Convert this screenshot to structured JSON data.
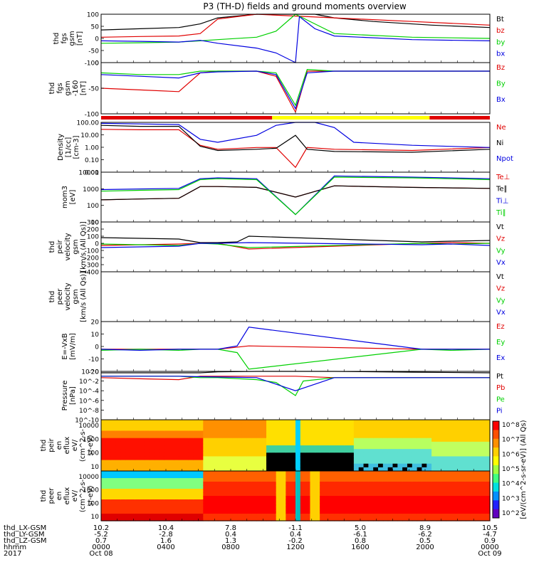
{
  "title": "P3 (TH-D) fields and ground moments overview",
  "colors": {
    "black": "#000000",
    "red": "#e00000",
    "green": "#00d000",
    "blue": "#0000e0",
    "yellow": "#ffff00"
  },
  "chart_data": [
    {
      "type": "line",
      "id": "fgs",
      "ylabel": [
        "thd",
        "fgs",
        "gsm",
        "[nT]"
      ],
      "ylim": [
        -100,
        100
      ],
      "yticks": [
        "100",
        "50",
        "0",
        "-50",
        "-100"
      ],
      "legend": [
        {
          "name": "Bt",
          "color": "#000000"
        },
        {
          "name": "bz",
          "color": "#e00000"
        },
        {
          "name": "by",
          "color": "#00d000"
        },
        {
          "name": "bx",
          "color": "#0000e0"
        }
      ],
      "series": [
        {
          "name": "Bt",
          "color": "#000000",
          "x": [
            0,
            0.1,
            0.2,
            0.255,
            0.3,
            0.4,
            0.48,
            0.51,
            0.55,
            0.6,
            0.7,
            0.85,
            1
          ],
          "y": [
            35,
            40,
            45,
            60,
            85,
            100,
            100,
            100,
            100,
            85,
            70,
            55,
            45
          ]
        },
        {
          "name": "bz",
          "color": "#e00000",
          "x": [
            0,
            0.1,
            0.2,
            0.255,
            0.3,
            0.4,
            0.6,
            0.8,
            1
          ],
          "y": [
            5,
            8,
            10,
            20,
            80,
            100,
            85,
            70,
            55
          ]
        },
        {
          "name": "by",
          "color": "#00d000",
          "x": [
            0,
            0.1,
            0.2,
            0.255,
            0.3,
            0.4,
            0.45,
            0.5,
            0.55,
            0.6,
            0.8,
            1
          ],
          "y": [
            -20,
            -18,
            -15,
            -10,
            -5,
            5,
            30,
            100,
            60,
            20,
            5,
            0
          ]
        },
        {
          "name": "bx",
          "color": "#0000e0",
          "x": [
            0,
            0.1,
            0.2,
            0.255,
            0.3,
            0.4,
            0.45,
            0.5,
            0.51,
            0.55,
            0.6,
            0.8,
            1
          ],
          "y": [
            -10,
            -12,
            -15,
            -8,
            -20,
            -40,
            -60,
            -100,
            90,
            40,
            10,
            -5,
            -10
          ]
        }
      ]
    },
    {
      "type": "line",
      "id": "fgs_sm",
      "ylabel": [
        "thd",
        "fgs",
        "gsm",
        "-160",
        "[nT]"
      ],
      "ylim": [
        -125,
        25
      ],
      "yticks": [
        "0",
        "-50",
        "-100"
      ],
      "legend": [
        {
          "name": "Bz",
          "color": "#e00000"
        },
        {
          "name": "By",
          "color": "#00d000"
        },
        {
          "name": "Bx",
          "color": "#0000e0"
        }
      ],
      "series": [
        {
          "name": "Bz",
          "color": "#e00000",
          "x": [
            0,
            0.1,
            0.2,
            0.255,
            0.3,
            0.4,
            0.45,
            0.5,
            0.53,
            0.6,
            0.8,
            1
          ],
          "y": [
            -50,
            -55,
            -60,
            -5,
            0,
            0,
            -15,
            -120,
            0,
            0,
            0,
            0
          ]
        },
        {
          "name": "By",
          "color": "#00d000",
          "x": [
            0,
            0.1,
            0.2,
            0.255,
            0.3,
            0.4,
            0.45,
            0.5,
            0.53,
            0.6,
            0.8,
            1
          ],
          "y": [
            -5,
            -10,
            -10,
            0,
            0,
            0,
            -5,
            -100,
            5,
            0,
            0,
            0
          ]
        },
        {
          "name": "Bx",
          "color": "#0000e0",
          "x": [
            0,
            0.1,
            0.2,
            0.255,
            0.3,
            0.4,
            0.45,
            0.5,
            0.53,
            0.6,
            0.8,
            1
          ],
          "y": [
            -10,
            -15,
            -20,
            -5,
            -2,
            0,
            -10,
            -110,
            -5,
            0,
            0,
            0
          ]
        }
      ]
    },
    {
      "type": "line",
      "id": "density",
      "ylabel": [
        "Density",
        "[1/cc]",
        "[cm-3]"
      ],
      "ylim_log": [
        0.001,
        100
      ],
      "yticks": [
        "100.00",
        "10.00",
        "1.00",
        "0.10",
        "0.01"
      ],
      "legend": [
        {
          "name": "Ne",
          "color": "#e00000"
        },
        {
          "name": "Ni",
          "color": "#000000"
        },
        {
          "name": "Npot",
          "color": "#0000e0"
        }
      ],
      "series": [
        {
          "name": "Ne",
          "color": "#e00000",
          "x": [
            0,
            0.1,
            0.2,
            0.255,
            0.3,
            0.4,
            0.45,
            0.5,
            0.53,
            0.6,
            0.8,
            1
          ],
          "y": [
            20,
            18,
            18,
            0.5,
            0.2,
            0.3,
            0.3,
            0.003,
            0.3,
            0.2,
            0.15,
            0.3
          ]
        },
        {
          "name": "Ni",
          "color": "#000000",
          "x": [
            0,
            0.1,
            0.2,
            0.255,
            0.3,
            0.4,
            0.45,
            0.5,
            0.53,
            0.6,
            0.8,
            1
          ],
          "y": [
            50,
            40,
            40,
            0.4,
            0.15,
            0.2,
            0.25,
            5,
            0.2,
            0.12,
            0.1,
            0.2
          ]
        },
        {
          "name": "Npot",
          "color": "#0000e0",
          "x": [
            0,
            0.1,
            0.2,
            0.255,
            0.3,
            0.4,
            0.45,
            0.5,
            0.55,
            0.6,
            0.65,
            0.8,
            1
          ],
          "y": [
            80,
            70,
            60,
            2,
            1,
            5,
            50,
            100,
            100,
            30,
            1,
            0.5,
            0.3
          ]
        }
      ]
    },
    {
      "type": "line",
      "id": "temperature",
      "ylabel": [
        "mom3",
        "[eV]"
      ],
      "ylim_log": [
        1,
        10000
      ],
      "yticks": [
        "10000",
        "1000",
        "100",
        "10"
      ],
      "legend": [
        {
          "name": "Te⊥",
          "color": "#e00000"
        },
        {
          "name": "Te∥",
          "color": "#000000"
        },
        {
          "name": "Ti⊥",
          "color": "#0000e0"
        },
        {
          "name": "Ti∥",
          "color": "#00d000"
        }
      ],
      "series": [
        {
          "name": "Te⊥",
          "color": "#e00000",
          "x": [
            0,
            0.1,
            0.2,
            0.255,
            0.3,
            0.4,
            0.5,
            0.6,
            0.8,
            1
          ],
          "y": [
            60,
            70,
            80,
            700,
            700,
            600,
            100,
            800,
            600,
            500
          ]
        },
        {
          "name": "Te∥",
          "color": "#000000",
          "x": [
            0,
            0.1,
            0.2,
            0.255,
            0.3,
            0.4,
            0.5,
            0.6,
            0.8,
            1
          ],
          "y": [
            60,
            70,
            80,
            700,
            700,
            600,
            100,
            800,
            600,
            500
          ]
        },
        {
          "name": "Ti⊥",
          "color": "#0000e0",
          "x": [
            0,
            0.1,
            0.2,
            0.255,
            0.3,
            0.4,
            0.5,
            0.6,
            0.8,
            1
          ],
          "y": [
            400,
            450,
            500,
            3000,
            3500,
            3000,
            4,
            5000,
            4000,
            3000
          ]
        },
        {
          "name": "Ti∥",
          "color": "#00d000",
          "x": [
            0,
            0.1,
            0.2,
            0.255,
            0.3,
            0.4,
            0.5,
            0.6,
            0.8,
            1
          ],
          "y": [
            300,
            350,
            400,
            2500,
            3000,
            2500,
            4,
            4000,
            3500,
            2500
          ]
        }
      ]
    },
    {
      "type": "line",
      "id": "peir_velocity",
      "ylabel": [
        "thd",
        "peir",
        "velocity",
        "gsm",
        "[km/s (All Qs)]"
      ],
      "ylim": [
        -400,
        300
      ],
      "yticks": [
        "300",
        "200",
        "100",
        "0",
        "-100",
        "-200",
        "-300",
        "-400"
      ],
      "legend": [
        {
          "name": "Vt",
          "color": "#000000"
        },
        {
          "name": "Vz",
          "color": "#e00000"
        },
        {
          "name": "Vy",
          "color": "#00d000"
        },
        {
          "name": "Vx",
          "color": "#0000e0"
        }
      ],
      "series": [
        {
          "name": "Vt",
          "color": "#000000",
          "x": [
            0,
            0.1,
            0.2,
            0.255,
            0.3,
            0.35,
            0.38,
            0.825,
            0.9,
            1
          ],
          "y": [
            80,
            70,
            60,
            10,
            10,
            20,
            100,
            20,
            30,
            40
          ]
        },
        {
          "name": "Vz",
          "color": "#e00000",
          "x": [
            0,
            0.1,
            0.2,
            0.255,
            0.3,
            0.38,
            0.825,
            0.9,
            1
          ],
          "y": [
            -30,
            -20,
            -10,
            0,
            0,
            -80,
            0,
            10,
            0
          ]
        },
        {
          "name": "Vy",
          "color": "#00d000",
          "x": [
            0,
            0.1,
            0.2,
            0.255,
            0.3,
            0.38,
            0.825,
            0.9,
            1
          ],
          "y": [
            -10,
            -20,
            -30,
            0,
            -10,
            -60,
            0,
            -10,
            0
          ]
        },
        {
          "name": "Vx",
          "color": "#0000e0",
          "x": [
            0,
            0.1,
            0.2,
            0.255,
            0.3,
            0.38,
            0.825,
            0.9,
            1
          ],
          "y": [
            -60,
            -50,
            -40,
            0,
            0,
            10,
            -20,
            -10,
            -30
          ]
        }
      ]
    },
    {
      "type": "line",
      "id": "peer_velocity",
      "ylabel": [
        "thd",
        "peer",
        "velocity",
        "gsm",
        "[km/s (All Qs)]"
      ],
      "ylim": [
        -1,
        1
      ],
      "yticks": [],
      "legend": [
        {
          "name": "Vt",
          "color": "#000000"
        },
        {
          "name": "Vz",
          "color": "#e00000"
        },
        {
          "name": "Vy",
          "color": "#00d000"
        },
        {
          "name": "Vx",
          "color": "#0000e0"
        }
      ],
      "series": []
    },
    {
      "type": "line",
      "id": "efield",
      "ylabel": [
        "E=-VxB",
        "[mV/m]"
      ],
      "ylim": [
        -20,
        25
      ],
      "yticks": [
        "20",
        "10",
        "0",
        "-10",
        "-20"
      ],
      "legend": [
        {
          "name": "Ez",
          "color": "#e00000"
        },
        {
          "name": "Ey",
          "color": "#00d000"
        },
        {
          "name": "Ex",
          "color": "#0000e0"
        }
      ],
      "series": [
        {
          "name": "Ez",
          "color": "#e00000",
          "x": [
            0,
            0.1,
            0.2,
            0.255,
            0.3,
            0.38,
            0.825,
            0.9,
            1
          ],
          "y": [
            0,
            0,
            0,
            0,
            0,
            3,
            0,
            0,
            0
          ]
        },
        {
          "name": "Ey",
          "color": "#00d000",
          "x": [
            0,
            0.1,
            0.2,
            0.255,
            0.3,
            0.35,
            0.38,
            0.825,
            0.9,
            1
          ],
          "y": [
            -1,
            0,
            -1,
            0,
            0,
            -3,
            -18,
            0,
            -1,
            0
          ]
        },
        {
          "name": "Ex",
          "color": "#0000e0",
          "x": [
            0,
            0.1,
            0.2,
            0.255,
            0.3,
            0.35,
            0.38,
            0.825,
            0.9,
            1
          ],
          "y": [
            0,
            -1,
            0,
            0,
            0,
            3,
            20,
            0,
            0,
            0
          ]
        }
      ]
    },
    {
      "type": "line",
      "id": "pressure",
      "ylabel": [
        "Pressure",
        "[nPa]"
      ],
      "ylim_log": [
        1e-10,
        1
      ],
      "yticks": [
        "10^0",
        "10^-2",
        "10^-4",
        "10^-6",
        "10^-8",
        "10^-10"
      ],
      "legend": [
        {
          "name": "Pt",
          "color": "#000000"
        },
        {
          "name": "Pb",
          "color": "#e00000"
        },
        {
          "name": "Pe",
          "color": "#00d000"
        },
        {
          "name": "Pi",
          "color": "#0000e0"
        }
      ],
      "series": [
        {
          "name": "Pt",
          "color": "#000000",
          "x": [
            0,
            0.1,
            0.2,
            0.255,
            0.3,
            0.4,
            0.5,
            0.6,
            0.8,
            1
          ],
          "y": [
            0.5,
            0.5,
            0.5,
            0.5,
            0.8,
            1,
            1,
            1,
            0.7,
            0.5
          ]
        },
        {
          "name": "Pb",
          "color": "#e00000",
          "x": [
            0,
            0.1,
            0.2,
            0.255,
            0.3,
            0.4,
            0.5,
            0.6,
            0.8,
            1
          ],
          "y": [
            0.05,
            0.03,
            0.02,
            0.1,
            0.1,
            0.1,
            0.1,
            0.05,
            0.05,
            0.05
          ]
        },
        {
          "name": "Pe",
          "color": "#00d000",
          "x": [
            0,
            0.1,
            0.2,
            0.255,
            0.3,
            0.4,
            0.45,
            0.5,
            0.52,
            0.6,
            0.8,
            1
          ],
          "y": [
            0.1,
            0.1,
            0.1,
            0.05,
            0.05,
            0.02,
            0.005,
            1e-05,
            0.01,
            0.05,
            0.05,
            0.05
          ]
        },
        {
          "name": "Pi",
          "color": "#0000e0",
          "x": [
            0,
            0.1,
            0.2,
            0.255,
            0.3,
            0.4,
            0.5,
            0.6,
            0.8,
            1
          ],
          "y": [
            0.1,
            0.1,
            0.1,
            0.08,
            0.07,
            0.05,
            0.0001,
            0.05,
            0.05,
            0.05
          ]
        }
      ]
    },
    {
      "type": "heatmap",
      "id": "peir_eflux",
      "ylabel": [
        "thd",
        "peir",
        "en",
        "eflux",
        "eV/",
        "(cm^2-s-",
        "sr-eV)"
      ],
      "yticks": [
        "10000",
        "1000",
        "100",
        "10"
      ]
    },
    {
      "type": "heatmap",
      "id": "peer_eflux",
      "ylabel": [
        "thd",
        "peer",
        "en",
        "eflux",
        "eV/",
        "(cm^2-s-",
        "sr-eV)"
      ],
      "yticks": [
        "10000",
        "1000",
        "100",
        "10"
      ]
    }
  ],
  "colorbar": {
    "ticks": [
      "10^8",
      "10^7",
      "10^6",
      "10^5",
      "10^4",
      "10^3",
      "10^2"
    ],
    "label": "[eV/(cm^2-s-sr-eV)] (All Qs)"
  },
  "bar_strip": {
    "segments": [
      {
        "from": 0,
        "to": 0.44,
        "color": "#e00000"
      },
      {
        "from": 0.44,
        "to": 0.845,
        "color": "#ffff00"
      },
      {
        "from": 0.845,
        "to": 1,
        "color": "#e00000"
      }
    ]
  },
  "xaxis": {
    "rows": [
      {
        "label": "thd_LX-GSM",
        "values": [
          "10.2",
          "10.4",
          "7.8",
          "-1.1",
          "5.0",
          "8.9",
          "10.5"
        ]
      },
      {
        "label": "thd_LY-GSM",
        "values": [
          "-5.2",
          "-2.8",
          "0.4",
          "0.4",
          "-6.1",
          "-6.2",
          "-4.7"
        ]
      },
      {
        "label": "thd_LZ-GSM",
        "values": [
          "0.7",
          "1.6",
          "1.3",
          "-0.2",
          "0.8",
          "0.5",
          "0.9"
        ]
      },
      {
        "label": "hhmm",
        "values": [
          "0000",
          "0400",
          "0800",
          "1200",
          "1600",
          "2000",
          "0000"
        ]
      },
      {
        "label": "2017",
        "values": [
          "Oct 08",
          "",
          "",
          "",
          "",
          "",
          "Oct 09"
        ]
      }
    ]
  }
}
